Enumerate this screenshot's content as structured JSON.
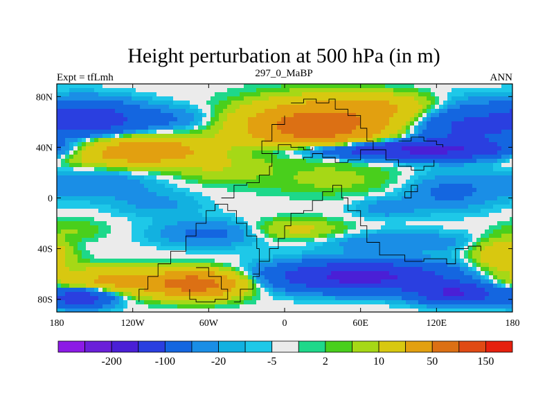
{
  "chart_data": {
    "type": "heatmap",
    "title": "Height perturbation at 500 hPa (in m)",
    "subtitle_left": "Expt = tfLmh",
    "subtitle_center": "297_0_MaBP",
    "subtitle_right": "ANN",
    "xlim": [
      -180,
      180
    ],
    "ylim": [
      -90,
      90
    ],
    "x_ticks": [
      {
        "value": -180,
        "label": "180"
      },
      {
        "value": -120,
        "label": "120W"
      },
      {
        "value": -60,
        "label": "60W"
      },
      {
        "value": 0,
        "label": "0"
      },
      {
        "value": 60,
        "label": "60E"
      },
      {
        "value": 120,
        "label": "120E"
      },
      {
        "value": 180,
        "label": "180"
      }
    ],
    "y_ticks": [
      {
        "value": 80,
        "label": "80N"
      },
      {
        "value": 40,
        "label": "40N"
      },
      {
        "value": 0,
        "label": "0"
      },
      {
        "value": -40,
        "label": "40S"
      },
      {
        "value": -80,
        "label": "80S"
      }
    ],
    "colorbar": {
      "colors": [
        "#8c1ae6",
        "#6a1fd9",
        "#4a1fd6",
        "#2a3fe0",
        "#1466e0",
        "#1a8ee6",
        "#12b1e0",
        "#1ec8e8",
        "#ebebeb",
        "#1ed88a",
        "#49cf1c",
        "#a6d816",
        "#d8c810",
        "#e2a010",
        "#dc7014",
        "#e04a14",
        "#e6200e"
      ],
      "labels": [
        {
          "after_index": 1,
          "text": "-200"
        },
        {
          "after_index": 3,
          "text": "-100"
        },
        {
          "after_index": 5,
          "text": "-20"
        },
        {
          "after_index": 7,
          "text": "-5"
        },
        {
          "after_index": 9,
          "text": "2"
        },
        {
          "after_index": 11,
          "text": "10"
        },
        {
          "after_index": 13,
          "text": "50"
        },
        {
          "after_index": 15,
          "text": "150"
        }
      ]
    },
    "field_blobs": [
      {
        "lon": -155,
        "lat": 62,
        "rlon": 40,
        "rlat": 14,
        "amp": -75
      },
      {
        "lon": -90,
        "lat": 62,
        "rlon": 35,
        "rlat": 10,
        "amp": -20
      },
      {
        "lon": 140,
        "lat": 55,
        "rlon": 40,
        "rlat": 18,
        "amp": -55
      },
      {
        "lon": -115,
        "lat": 37,
        "rlon": 55,
        "rlat": 11,
        "amp": 90
      },
      {
        "lon": 0,
        "lat": 75,
        "rlon": 60,
        "rlat": 10,
        "amp": -2
      },
      {
        "lon": 25,
        "lat": 57,
        "rlon": 55,
        "rlat": 18,
        "amp": 140
      },
      {
        "lon": 80,
        "lat": 72,
        "rlon": 40,
        "rlat": 10,
        "amp": 40
      },
      {
        "lon": 95,
        "lat": 38,
        "rlon": 85,
        "rlat": 7,
        "amp": -110
      },
      {
        "lon": -50,
        "lat": 22,
        "rlon": 35,
        "rlat": 10,
        "amp": 15
      },
      {
        "lon": 40,
        "lat": 14,
        "rlon": 60,
        "rlat": 12,
        "amp": 12
      },
      {
        "lon": -150,
        "lat": 12,
        "rlon": 45,
        "rlat": 12,
        "amp": -20
      },
      {
        "lon": 130,
        "lat": 5,
        "rlon": 35,
        "rlat": 14,
        "amp": -25
      },
      {
        "lon": -100,
        "lat": -5,
        "rlon": 35,
        "rlat": 10,
        "amp": -12
      },
      {
        "lon": 80,
        "lat": -8,
        "rlon": 25,
        "rlat": 8,
        "amp": -15
      },
      {
        "lon": 10,
        "lat": -25,
        "rlon": 35,
        "rlat": 8,
        "amp": 25
      },
      {
        "lon": -165,
        "lat": -25,
        "rlon": 25,
        "rlat": 8,
        "amp": 10
      },
      {
        "lon": -60,
        "lat": -28,
        "rlon": 40,
        "rlat": 10,
        "amp": -25
      },
      {
        "lon": -140,
        "lat": -66,
        "rlon": 45,
        "rlat": 10,
        "amp": 60
      },
      {
        "lon": -70,
        "lat": -68,
        "rlon": 35,
        "rlat": 10,
        "amp": 130
      },
      {
        "lon": -160,
        "lat": -78,
        "rlon": 25,
        "rlat": 8,
        "amp": -85
      },
      {
        "lon": 60,
        "lat": -62,
        "rlon": 65,
        "rlat": 11,
        "amp": -120
      },
      {
        "lon": 135,
        "lat": -75,
        "rlon": 30,
        "rlat": 8,
        "amp": -100
      },
      {
        "lon": 170,
        "lat": -45,
        "rlon": 20,
        "rlat": 12,
        "amp": 45
      },
      {
        "lon": 90,
        "lat": -35,
        "rlon": 60,
        "rlat": 8,
        "amp": -20
      }
    ],
    "continent_outlines": [
      [
        [
          -25,
          -60
        ],
        [
          -20,
          -50
        ],
        [
          -12,
          -40
        ],
        [
          -5,
          -32
        ],
        [
          0,
          -22
        ],
        [
          5,
          -12
        ],
        [
          15,
          -10
        ],
        [
          22,
          -2
        ],
        [
          30,
          5
        ],
        [
          38,
          10
        ],
        [
          45,
          0
        ],
        [
          50,
          -10
        ],
        [
          60,
          -22
        ],
        [
          65,
          -35
        ],
        [
          75,
          -45
        ],
        [
          85,
          -45
        ],
        [
          95,
          -50
        ],
        [
          110,
          -48
        ],
        [
          120,
          -48
        ],
        [
          128,
          -52
        ],
        [
          135,
          -40
        ],
        [
          145,
          -38
        ],
        [
          155,
          -42
        ]
      ],
      [
        [
          -82,
          -42
        ],
        [
          -78,
          -30
        ],
        [
          -70,
          -20
        ],
        [
          -62,
          -10
        ],
        [
          -55,
          -5
        ],
        [
          -45,
          -10
        ],
        [
          -38,
          -20
        ],
        [
          -30,
          -30
        ],
        [
          -22,
          -40
        ],
        [
          -20,
          -50
        ]
      ],
      [
        [
          -82,
          -42
        ],
        [
          -90,
          -52
        ],
        [
          -100,
          -62
        ],
        [
          -108,
          -72
        ],
        [
          -115,
          -82
        ]
      ],
      [
        [
          -70,
          -55
        ],
        [
          -60,
          -62
        ],
        [
          -50,
          -72
        ],
        [
          -45,
          -80
        ],
        [
          -55,
          -82
        ],
        [
          -70,
          -80
        ],
        [
          -75,
          -72
        ]
      ],
      [
        [
          -40,
          -82
        ],
        [
          -35,
          -72
        ],
        [
          -25,
          -62
        ],
        [
          -20,
          -55
        ]
      ],
      [
        [
          -50,
          0
        ],
        [
          -40,
          10
        ],
        [
          -30,
          12
        ],
        [
          -20,
          18
        ],
        [
          -12,
          25
        ],
        [
          -10,
          35
        ],
        [
          -18,
          45
        ],
        [
          -10,
          58
        ],
        [
          0,
          65
        ]
      ],
      [
        [
          -10,
          35
        ],
        [
          -5,
          42
        ],
        [
          5,
          40
        ],
        [
          15,
          38
        ],
        [
          22,
          40
        ]
      ],
      [
        [
          5,
          75
        ],
        [
          15,
          78
        ],
        [
          25,
          75
        ],
        [
          35,
          78
        ],
        [
          40,
          70
        ],
        [
          50,
          65
        ],
        [
          60,
          55
        ],
        [
          65,
          45
        ],
        [
          70,
          38
        ],
        [
          60,
          30
        ],
        [
          50,
          28
        ]
      ],
      [
        [
          50,
          28
        ],
        [
          40,
          32
        ],
        [
          30,
          35
        ],
        [
          22,
          32
        ],
        [
          15,
          30
        ]
      ],
      [
        [
          70,
          38
        ],
        [
          80,
          30
        ],
        [
          90,
          25
        ],
        [
          100,
          22
        ],
        [
          110,
          25
        ],
        [
          118,
          30
        ]
      ],
      [
        [
          90,
          45
        ],
        [
          100,
          48
        ],
        [
          110,
          45
        ],
        [
          120,
          42
        ],
        [
          125,
          40
        ]
      ],
      [
        [
          95,
          5
        ],
        [
          100,
          10
        ],
        [
          105,
          5
        ],
        [
          100,
          0
        ],
        [
          95,
          5
        ]
      ]
    ]
  }
}
